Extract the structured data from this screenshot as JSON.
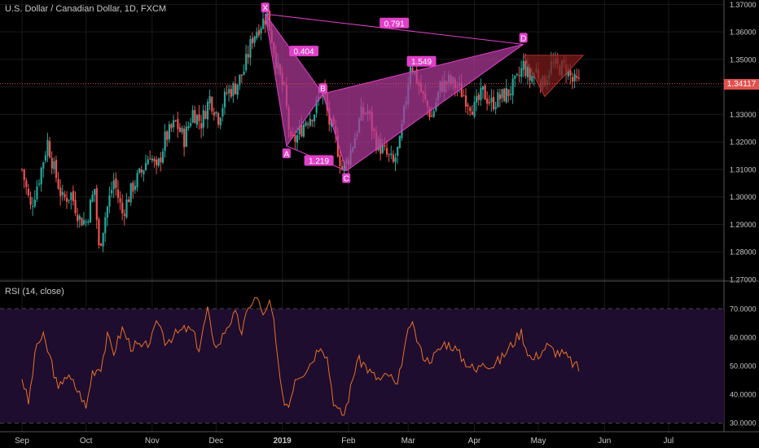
{
  "header": {
    "symbol_title": "U.S. Dollar / Canadian Dollar, 1D, FXCM",
    "rsi_title": "RSI (14, close)",
    "last_price": "1.34117"
  },
  "colors": {
    "background": "#000000",
    "up_candle": "#26a69a",
    "down_candle": "#ef5350",
    "pattern_fill": "#b0399a",
    "pattern_line": "#e040c8",
    "label_bg": "#e040c8",
    "rsi_line": "#e8702a",
    "rsi_band": "#1e0d2e",
    "triangle_fill": "#7a1a1a",
    "price_line": "#e2514d",
    "axis_text": "#c8c8c8",
    "grid": "#1a1a1a"
  },
  "chart_data": {
    "type": "candlestick",
    "price_axis": {
      "ticks": [
        "1.37000",
        "1.36000",
        "1.35000",
        "1.34000",
        "1.33000",
        "1.32000",
        "1.31000",
        "1.30000",
        "1.29000",
        "1.28000",
        "1.27000"
      ],
      "range": [
        1.2697,
        1.3716
      ]
    },
    "rsi_axis": {
      "ticks": [
        "70.0000",
        "60.0000",
        "50.0000",
        "40.0000",
        "30.0000"
      ],
      "range": [
        26.9,
        79.5
      ],
      "band": [
        30,
        70
      ]
    },
    "time_axis": {
      "labels": [
        "Sep",
        "Oct",
        "Nov",
        "Dec",
        "2019",
        "Feb",
        "Mar",
        "Apr",
        "May",
        "Jun",
        "Jul"
      ],
      "positions_day": [
        0,
        30,
        61,
        91,
        122,
        153,
        181,
        212,
        242,
        273,
        303
      ]
    },
    "close_series": [
      [
        0,
        1.31
      ],
      [
        4,
        1.296
      ],
      [
        8,
        1.307
      ],
      [
        12,
        1.32
      ],
      [
        15,
        1.31
      ],
      [
        19,
        1.299
      ],
      [
        23,
        1.301
      ],
      [
        27,
        1.292
      ],
      [
        30,
        1.291
      ],
      [
        34,
        1.303
      ],
      [
        36,
        1.281
      ],
      [
        39,
        1.293
      ],
      [
        43,
        1.306
      ],
      [
        47,
        1.294
      ],
      [
        52,
        1.304
      ],
      [
        56,
        1.309
      ],
      [
        60,
        1.316
      ],
      [
        63,
        1.309
      ],
      [
        67,
        1.321
      ],
      [
        72,
        1.327
      ],
      [
        76,
        1.321
      ],
      [
        80,
        1.331
      ],
      [
        84,
        1.327
      ],
      [
        88,
        1.336
      ],
      [
        92,
        1.329
      ],
      [
        96,
        1.338
      ],
      [
        100,
        1.34
      ],
      [
        104,
        1.346
      ],
      [
        108,
        1.358
      ],
      [
        111,
        1.362
      ],
      [
        113,
        1.364
      ],
      [
        115,
        1.366
      ],
      [
        117,
        1.358
      ],
      [
        120,
        1.346
      ],
      [
        123,
        1.338
      ],
      [
        126,
        1.319
      ],
      [
        129,
        1.322
      ],
      [
        133,
        1.328
      ],
      [
        137,
        1.331
      ],
      [
        141,
        1.34
      ],
      [
        144,
        1.327
      ],
      [
        147,
        1.321
      ],
      [
        150,
        1.31
      ],
      [
        153,
        1.314
      ],
      [
        156,
        1.322
      ],
      [
        159,
        1.33
      ],
      [
        162,
        1.331
      ],
      [
        166,
        1.32
      ],
      [
        170,
        1.316
      ],
      [
        174,
        1.312
      ],
      [
        177,
        1.319
      ],
      [
        180,
        1.336
      ],
      [
        182,
        1.349
      ],
      [
        185,
        1.343
      ],
      [
        188,
        1.336
      ],
      [
        192,
        1.329
      ],
      [
        196,
        1.34
      ],
      [
        200,
        1.342
      ],
      [
        204,
        1.34
      ],
      [
        208,
        1.336
      ],
      [
        212,
        1.332
      ],
      [
        216,
        1.338
      ],
      [
        220,
        1.334
      ],
      [
        224,
        1.336
      ],
      [
        228,
        1.338
      ],
      [
        232,
        1.342
      ],
      [
        235,
        1.348
      ],
      [
        238,
        1.343
      ],
      [
        241,
        1.346
      ],
      [
        244,
        1.341
      ],
      [
        248,
        1.348
      ],
      [
        251,
        1.347
      ],
      [
        255,
        1.347
      ],
      [
        258,
        1.342
      ],
      [
        261,
        1.341
      ]
    ],
    "rsi_series": [
      [
        0,
        46
      ],
      [
        3,
        37
      ],
      [
        7,
        58
      ],
      [
        10,
        60
      ],
      [
        14,
        51
      ],
      [
        17,
        41
      ],
      [
        20,
        47
      ],
      [
        24,
        44
      ],
      [
        28,
        39
      ],
      [
        30,
        35
      ],
      [
        33,
        48
      ],
      [
        37,
        50
      ],
      [
        40,
        60
      ],
      [
        43,
        55
      ],
      [
        47,
        63
      ],
      [
        51,
        57
      ],
      [
        54,
        57
      ],
      [
        57,
        56
      ],
      [
        61,
        60
      ],
      [
        64,
        66
      ],
      [
        67,
        59
      ],
      [
        70,
        60
      ],
      [
        74,
        62
      ],
      [
        77,
        63
      ],
      [
        80,
        62
      ],
      [
        83,
        56
      ],
      [
        87,
        70
      ],
      [
        89,
        60
      ],
      [
        92,
        57
      ],
      [
        96,
        64
      ],
      [
        100,
        68
      ],
      [
        103,
        62
      ],
      [
        107,
        72
      ],
      [
        110,
        74
      ],
      [
        112,
        70
      ],
      [
        114,
        68
      ],
      [
        116,
        72
      ],
      [
        118,
        66
      ],
      [
        120,
        50
      ],
      [
        122,
        39
      ],
      [
        125,
        36
      ],
      [
        128,
        46
      ],
      [
        132,
        48
      ],
      [
        136,
        52
      ],
      [
        140,
        58
      ],
      [
        143,
        53
      ],
      [
        146,
        38
      ],
      [
        148,
        34
      ],
      [
        151,
        33
      ],
      [
        154,
        42
      ],
      [
        157,
        52
      ],
      [
        160,
        51
      ],
      [
        164,
        47
      ],
      [
        168,
        45
      ],
      [
        172,
        47
      ],
      [
        176,
        42
      ],
      [
        178,
        52
      ],
      [
        180,
        58
      ],
      [
        182,
        65
      ],
      [
        184,
        62
      ],
      [
        187,
        55
      ],
      [
        190,
        52
      ],
      [
        194,
        54
      ],
      [
        198,
        58
      ],
      [
        202,
        57
      ],
      [
        206,
        53
      ],
      [
        210,
        50
      ],
      [
        213,
        48
      ],
      [
        216,
        52
      ],
      [
        220,
        50
      ],
      [
        224,
        52
      ],
      [
        228,
        56
      ],
      [
        232,
        60
      ],
      [
        234,
        62
      ],
      [
        236,
        57
      ],
      [
        239,
        52
      ],
      [
        242,
        54
      ],
      [
        246,
        57
      ],
      [
        250,
        55
      ],
      [
        254,
        54
      ],
      [
        258,
        51
      ],
      [
        261,
        49
      ]
    ],
    "harmonic_pattern": {
      "points": [
        {
          "label": "X",
          "day": 114,
          "price": 1.3665
        },
        {
          "label": "A",
          "day": 124,
          "price": 1.3185
        },
        {
          "label": "B",
          "day": 141,
          "price": 1.3375
        },
        {
          "label": "C",
          "day": 152,
          "price": 1.3095
        },
        {
          "label": "D",
          "day": 235,
          "price": 1.3555
        }
      ],
      "ratios": [
        "0.404",
        "1.219",
        "1.549",
        "0.791"
      ]
    },
    "triangle": {
      "points": [
        [
          235,
          1.3515
        ],
        [
          263,
          1.3515
        ],
        [
          245,
          1.3365
        ]
      ]
    },
    "last_price_value": 1.34117
  }
}
